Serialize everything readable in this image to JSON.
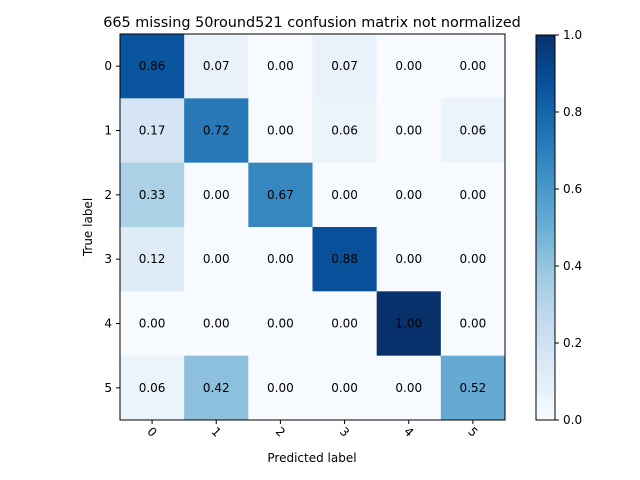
{
  "chart_data": {
    "type": "heatmap",
    "title": "665 missing 50round521 confusion matrix not normalized",
    "xlabel": "Predicted label",
    "ylabel": "True label",
    "x_categories": [
      "0",
      "1",
      "2",
      "3",
      "4",
      "5"
    ],
    "y_categories": [
      "0",
      "1",
      "2",
      "3",
      "4",
      "5"
    ],
    "values": [
      [
        0.86,
        0.07,
        0.0,
        0.07,
        0.0,
        0.0
      ],
      [
        0.17,
        0.72,
        0.0,
        0.06,
        0.0,
        0.06
      ],
      [
        0.33,
        0.0,
        0.67,
        0.0,
        0.0,
        0.0
      ],
      [
        0.12,
        0.0,
        0.0,
        0.88,
        0.0,
        0.0
      ],
      [
        0.0,
        0.0,
        0.0,
        0.0,
        1.0,
        0.0
      ],
      [
        0.06,
        0.42,
        0.0,
        0.0,
        0.0,
        0.52
      ]
    ],
    "colormap": "Blues",
    "colorbar": {
      "range": [
        0.0,
        1.0
      ],
      "ticks": [
        "0.0",
        "0.2",
        "0.4",
        "0.6",
        "0.8",
        "1.0"
      ]
    },
    "text_color_threshold": 0.5,
    "colors": {
      "text_dark": "#000000",
      "text_light": "#ffffff"
    },
    "grid": false
  }
}
